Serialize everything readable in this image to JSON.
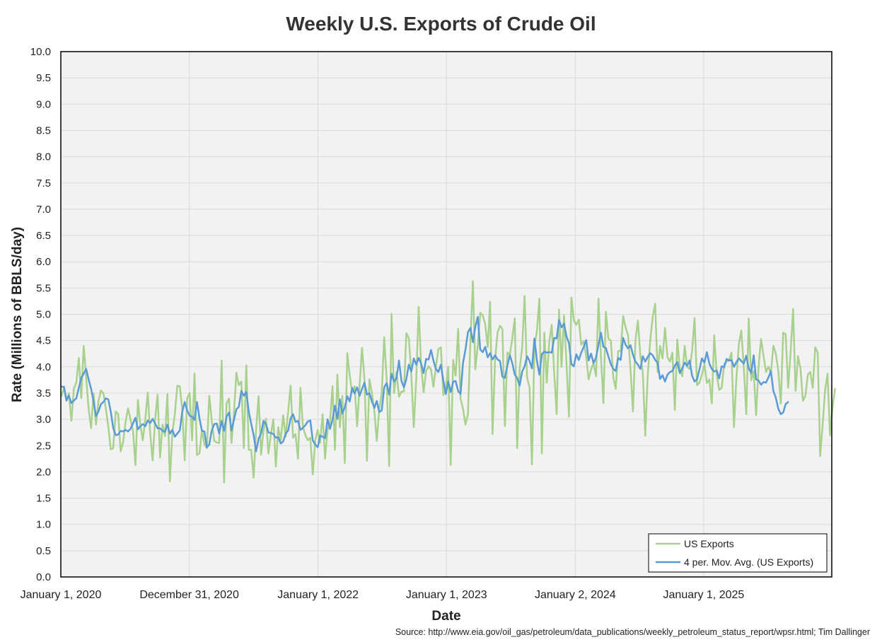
{
  "chart_data": {
    "type": "line",
    "title": "Weekly U.S. Exports of Crude Oil",
    "xlabel": "Date",
    "ylabel": "Rate (Millions of BBLS/day)",
    "ylim": [
      0,
      10
    ],
    "y_ticks": [
      "0.0",
      "0.5",
      "1.0",
      "1.5",
      "2.0",
      "2.5",
      "3.0",
      "3.5",
      "4.0",
      "4.5",
      "5.0",
      "5.5",
      "6.0",
      "6.5",
      "7.0",
      "7.5",
      "8.0",
      "8.5",
      "9.0",
      "9.5",
      "10.0"
    ],
    "x_tick_labels": [
      "January 1, 2020",
      "December 31, 2020",
      "January 1, 2022",
      "January 1, 2023",
      "January 2, 2024",
      "January 1, 2025"
    ],
    "x_tick_dates": [
      "2020-01-01",
      "2020-12-31",
      "2022-01-01",
      "2023-01-01",
      "2024-01-02",
      "2025-01-01"
    ],
    "xlim": [
      "2020-01-01",
      "2025-12-31"
    ],
    "grid": true,
    "legend_position": "bottom-right",
    "colors": {
      "US Exports": "#a9d18e",
      "4 per. Mov. Avg. (US Exports)": "#5b9bd5",
      "plot_background": "#f2f2f2",
      "gridline": "#d9d9d9"
    },
    "series": [
      {
        "name": "US Exports",
        "start": "2020-01-03",
        "interval_days": 7,
        "values": [
          3.45,
          3.6,
          3.35,
          3.5,
          2.97,
          3.58,
          3.7,
          4.17,
          3.4,
          4.4,
          3.8,
          3.2,
          2.83,
          3.5,
          2.9,
          3.35,
          3.55,
          3.5,
          3.2,
          2.85,
          2.43,
          2.45,
          3.15,
          3.1,
          2.39,
          2.57,
          2.95,
          3.21,
          3.0,
          2.78,
          2.13,
          3.37,
          2.9,
          2.6,
          3.0,
          3.51,
          2.72,
          2.22,
          3.0,
          3.47,
          2.27,
          2.9,
          2.68,
          3.48,
          1.82,
          2.75,
          3.1,
          3.64,
          3.63,
          3.2,
          2.22,
          3.4,
          3.5,
          2.6,
          3.87,
          2.32,
          2.35,
          2.8,
          2.53,
          2.45,
          3.45,
          2.97,
          2.59,
          2.56,
          2.55,
          4.12,
          1.8,
          3.3,
          3.4,
          2.55,
          3.13,
          3.89,
          3.65,
          3.72,
          2.45,
          4.03,
          2.42,
          2.42,
          1.89,
          2.81,
          3.44,
          2.33,
          2.8,
          3.01,
          2.35,
          2.72,
          3.0,
          2.1,
          2.85,
          2.6,
          3.08,
          2.67,
          3.15,
          3.64,
          2.65,
          2.72,
          2.25,
          3.6,
          2.85,
          2.7,
          2.6,
          2.65,
          1.95,
          2.6,
          2.8,
          2.55,
          3.1,
          2.25,
          2.8,
          2.95,
          3.63,
          2.42,
          3.85,
          2.85,
          3.45,
          2.17,
          4.26,
          3.84,
          3.51,
          3.63,
          2.87,
          3.65,
          4.36,
          3.76,
          2.21,
          3.76,
          3.5,
          3.16,
          2.59,
          3.2,
          3.5,
          4.56,
          3.75,
          2.11,
          5.01,
          3.5,
          3.9,
          3.43,
          3.53,
          3.53,
          4.64,
          4.55,
          3.86,
          2.85,
          3.76,
          5.14,
          4.02,
          3.52,
          3.92,
          4.01,
          3.95,
          3.62,
          4.0,
          4.34,
          4.37,
          3.46,
          3.6,
          4.0,
          2.13,
          4.13,
          3.83,
          4.72,
          3.4,
          3.2,
          2.9,
          3.1,
          4.5,
          5.63,
          3.95,
          4.4,
          5.03,
          4.98,
          4.81,
          4.37,
          5.24,
          2.72,
          4.11,
          4.65,
          4.78,
          4.72,
          2.87,
          4.27,
          4.23,
          4.54,
          4.92,
          2.45,
          3.96,
          4.36,
          5.35,
          3.8,
          3.6,
          2.14,
          4.38,
          4.68,
          5.3,
          2.35,
          4.65,
          3.7,
          4.47,
          4.8,
          3.9,
          3.1,
          5.09,
          4.0,
          4.98,
          4.08,
          3.05,
          5.32,
          4.88,
          4.8,
          4.9,
          4.42,
          4.49,
          4.2,
          3.76,
          3.95,
          4.07,
          3.82,
          5.3,
          4.2,
          3.31,
          5.05,
          4.54,
          4.5,
          3.8,
          3.58,
          4.3,
          4.3,
          4.97,
          4.75,
          4.6,
          3.95,
          3.15,
          4.5,
          4.88,
          4.2,
          3.9,
          2.69,
          3.84,
          4.5,
          4.95,
          5.2,
          3.9,
          4.4,
          4.16,
          4.74,
          4.18,
          4.1,
          4.27,
          3.18,
          4.52,
          3.96,
          3.82,
          4.4,
          4.0,
          3.96,
          4.3,
          4.93,
          3.65,
          3.7,
          3.85,
          4.05,
          3.69,
          3.76,
          3.3,
          4.6,
          3.86,
          3.56,
          3.6,
          4.05,
          4.1,
          4.12,
          4.27,
          2.85,
          3.8,
          4.44,
          4.69,
          4.0,
          3.1,
          4.92,
          3.74,
          3.92,
          3.08,
          4.01,
          4.53,
          4.21,
          3.9,
          4.0,
          3.88,
          4.4,
          4.25,
          3.92,
          3.3,
          4.65,
          4.62,
          3.6,
          4.28,
          5.1,
          3.54,
          4.2,
          3.97,
          3.35,
          3.45,
          3.85,
          3.9,
          3.6,
          4.37,
          4.27,
          2.3,
          2.9,
          3.55,
          3.87,
          2.7,
          3.22,
          3.58
        ]
      },
      {
        "name": "4 per. Mov. Avg. (US Exports)",
        "start": "2020-01-03",
        "interval_days": 7,
        "values": [
          3.62,
          3.62,
          3.36,
          3.45,
          3.31,
          3.36,
          3.4,
          3.6,
          3.79,
          3.87,
          3.96,
          3.76,
          3.58,
          3.34,
          3.06,
          3.15,
          3.29,
          3.33,
          3.4,
          3.38,
          3.15,
          2.83,
          2.7,
          2.71,
          2.78,
          2.77,
          2.8,
          2.77,
          2.82,
          2.92,
          3.03,
          2.81,
          2.87,
          2.91,
          2.87,
          2.98,
          2.93,
          3.01,
          2.92,
          2.83,
          2.83,
          2.78,
          2.76,
          2.9,
          2.73,
          2.8,
          2.67,
          2.73,
          2.79,
          3.14,
          3.33,
          3.17,
          3.07,
          3.05,
          2.99,
          3.33,
          3.02,
          2.78,
          2.77,
          2.47,
          2.52,
          2.79,
          2.91,
          2.92,
          2.73,
          2.97,
          2.78,
          3.05,
          3.13,
          2.79,
          2.99,
          3.19,
          3.24,
          3.54,
          3.45,
          3.52,
          3.15,
          2.92,
          2.7,
          2.39,
          2.63,
          2.73,
          2.97,
          2.91,
          2.75,
          2.74,
          2.72,
          2.65,
          2.66,
          2.54,
          2.58,
          2.73,
          2.79,
          3.02,
          3.1,
          2.95,
          2.97,
          2.8,
          2.84,
          2.89,
          2.96,
          2.98,
          2.6,
          2.52,
          2.47,
          2.69,
          2.67,
          2.64,
          3.0,
          2.82,
          2.99,
          3.26,
          3.01,
          3.38,
          3.11,
          3.23,
          3.44,
          3.34,
          3.6,
          3.49,
          3.61,
          3.45,
          3.58,
          3.7,
          3.47,
          3.5,
          3.34,
          3.22,
          3.35,
          3.14,
          3.17,
          3.61,
          3.69,
          3.47,
          3.87,
          3.72,
          3.78,
          4.12,
          3.73,
          3.61,
          3.77,
          4.04,
          3.91,
          4.16,
          4.04,
          4.17,
          4.06,
          3.88,
          4.15,
          4.14,
          4.32,
          4.12,
          3.96,
          3.9,
          4.04,
          3.74,
          3.48,
          3.72,
          3.52,
          3.72,
          3.73,
          3.54,
          3.48,
          4.07,
          4.33,
          4.66,
          4.74,
          4.47,
          4.76,
          4.95,
          4.33,
          4.28,
          4.38,
          4.18,
          4.26,
          4.14,
          4.22,
          4.14,
          4.11,
          3.81,
          3.79,
          4.02,
          4.22,
          4.07,
          3.85,
          3.79,
          3.64,
          3.91,
          4.01,
          4.2,
          4.11,
          3.97,
          4.54,
          4.12,
          3.85,
          4.24,
          4.29,
          4.27,
          4.28,
          4.27,
          4.55,
          4.54,
          4.89,
          4.75,
          4.82,
          4.58,
          4.45,
          4.05,
          4.01,
          4.24,
          4.13,
          4.27,
          4.38,
          4.51,
          4.12,
          4.25,
          4.07,
          4.18,
          4.42,
          4.65,
          4.38,
          4.36,
          4.2,
          4.05,
          3.96,
          3.92,
          4.17,
          4.13,
          4.55,
          4.42,
          4.35,
          4.41,
          4.23,
          4.1,
          4.04,
          3.96,
          4.2,
          4.1,
          4.19,
          4.26,
          4.22,
          4.13,
          4.08,
          3.77,
          3.84,
          3.72,
          3.85,
          3.9,
          3.92,
          4.02,
          4.09,
          3.88,
          3.97,
          4.08,
          4.02,
          4.12,
          3.83,
          3.72,
          3.76,
          3.95,
          4.16,
          4.08,
          4.28,
          4.06,
          3.96,
          3.91,
          3.93,
          3.78,
          4.01,
          3.99,
          4.15,
          4.12,
          4.13,
          4.0,
          4.09,
          4.16,
          4.11,
          4.06,
          4.21,
          3.97,
          3.88,
          4.22,
          3.76,
          3.74,
          3.66,
          3.71,
          3.7,
          3.8,
          3.92,
          3.54,
          3.41,
          3.2,
          3.1,
          3.13,
          3.29,
          3.33
        ]
      }
    ]
  },
  "axes": {
    "x_title": "Date",
    "y_title": "Rate (Millions of BBLS/day)"
  },
  "legend": {
    "items": [
      "US Exports",
      "4 per. Mov. Avg. (US Exports)"
    ]
  },
  "source_note": "Source: http://www.eia.gov/oil_gas/petroleum/data_publications/weekly_petroleum_status_report/wpsr.html; Tim Dallinger"
}
